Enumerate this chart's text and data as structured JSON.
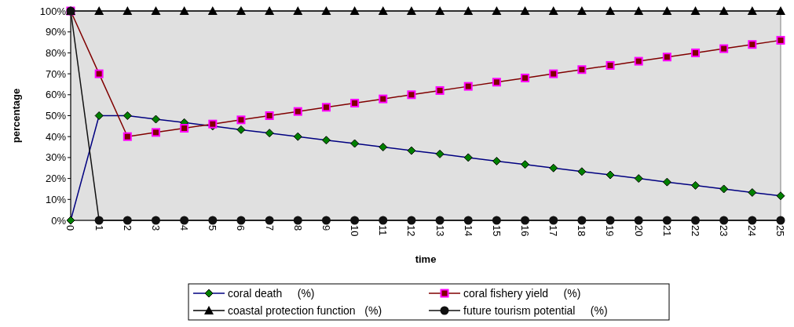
{
  "chart_data": {
    "type": "line",
    "xlabel": "time",
    "ylabel": "percentage",
    "x": [
      0,
      1,
      2,
      3,
      4,
      5,
      6,
      7,
      8,
      9,
      10,
      11,
      12,
      13,
      14,
      15,
      16,
      17,
      18,
      19,
      20,
      21,
      22,
      23,
      24,
      25
    ],
    "xlim": [
      0,
      25
    ],
    "xticks": [
      0,
      1,
      2,
      3,
      4,
      5,
      6,
      7,
      8,
      9,
      10,
      11,
      12,
      13,
      14,
      15,
      16,
      17,
      18,
      19,
      20,
      21,
      22,
      23,
      24,
      25
    ],
    "ylim": [
      0,
      100
    ],
    "yticks": [
      {
        "value": 0,
        "label": "0%"
      },
      {
        "value": 10,
        "label": "10%"
      },
      {
        "value": 20,
        "label": "20%"
      },
      {
        "value": 30,
        "label": "30%"
      },
      {
        "value": 40,
        "label": "40%"
      },
      {
        "value": 50,
        "label": "50%"
      },
      {
        "value": 60,
        "label": "60%"
      },
      {
        "value": 70,
        "label": "70%"
      },
      {
        "value": 80,
        "label": "80%"
      },
      {
        "value": 90,
        "label": "90%"
      },
      {
        "value": 100,
        "label": "100%"
      }
    ],
    "grid": false,
    "legend": "bottom",
    "line_style": "solid",
    "series": [
      {
        "name": "coral death     (%)",
        "color": "#000080",
        "marker": "diamond",
        "values": [
          0,
          50,
          50,
          48.3,
          46.7,
          45,
          43.3,
          41.7,
          40,
          38.3,
          36.7,
          35,
          33.3,
          31.7,
          30,
          28.3,
          26.7,
          25,
          23.3,
          21.7,
          20,
          18.3,
          16.7,
          15,
          13.3,
          11.7
        ]
      },
      {
        "name": "coral fishery yield     (%)",
        "color": "#800000",
        "marker": "square",
        "values": [
          100,
          70,
          40,
          42,
          44,
          46,
          48,
          50,
          52,
          54,
          56,
          58,
          60,
          62,
          64,
          66,
          68,
          70,
          72,
          74,
          76,
          78,
          80,
          82,
          84,
          86
        ]
      },
      {
        "name": "coastal protection function   (%)",
        "color": "#000000",
        "marker": "triangle",
        "values": [
          100,
          100,
          100,
          100,
          100,
          100,
          100,
          100,
          100,
          100,
          100,
          100,
          100,
          100,
          100,
          100,
          100,
          100,
          100,
          100,
          100,
          100,
          100,
          100,
          100,
          100
        ]
      },
      {
        "name": "future tourism potential     (%)",
        "color": "#111111",
        "marker": "circle",
        "values": [
          100,
          0,
          0,
          0,
          0,
          0,
          0,
          0,
          0,
          0,
          0,
          0,
          0,
          0,
          0,
          0,
          0,
          0,
          0,
          0,
          0,
          0,
          0,
          0,
          0,
          0
        ]
      }
    ]
  }
}
